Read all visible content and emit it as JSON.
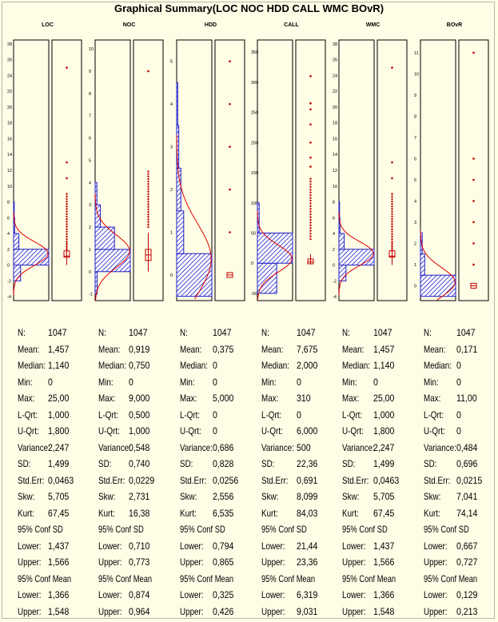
{
  "title": "Graphical Summary(LOC NOC HDD CALL WMC BOvR)",
  "colors": {
    "background": "#fffde6",
    "histogram_fill": "#1e1ec8",
    "normal_curve": "#e00000",
    "dots": "#c00000",
    "box": "#c00000"
  },
  "stat_labels": {
    "n": "N:",
    "mean": "Mean:",
    "median": "Median:",
    "min": "Min:",
    "max": "Max:",
    "lqrt": "L-Qrt:",
    "uqrt": "U-Qrt:",
    "variance": "Variance:",
    "sd": "SD:",
    "stderr": "Std.Err:",
    "skw": "Skw:",
    "kurt": "Kurt:",
    "conf_sd_header": "95% Conf SD",
    "conf_mean_header": "95% Conf Mean",
    "lower": "Lower:",
    "upper": "Upper:"
  },
  "chart_data": [
    {
      "type": "histogram",
      "title": "LOC",
      "yticks": [
        "-4",
        "-2",
        "0",
        "2",
        "4",
        "6",
        "8",
        "10",
        "12",
        "14",
        "16",
        "18",
        "20",
        "22",
        "24",
        "26",
        "28"
      ],
      "ylim": [
        -4.5,
        28.5
      ],
      "bins": [
        {
          "from": -2,
          "to": 0,
          "value": 0.2
        },
        {
          "from": 0,
          "to": 2,
          "value": 1.0
        },
        {
          "from": 2,
          "to": 4,
          "value": 0.15
        },
        {
          "from": 4,
          "to": 6,
          "value": 0.03
        },
        {
          "from": 6,
          "to": 8,
          "value": 0.01
        }
      ],
      "normal": {
        "mean": 1.457,
        "sd": 1.499
      },
      "outliers": [
        25,
        13,
        11
      ],
      "dense_range": [
        2,
        9
      ],
      "box": {
        "q1": 1.0,
        "median": 1.14,
        "q3": 1.8,
        "whisker_low": 0,
        "whisker_high": 3
      },
      "stats": {
        "n": "1047",
        "mean": "1,457",
        "median": "1,140",
        "min": "0",
        "max": "25,00",
        "lqrt": "1,000",
        "uqrt": "1,800",
        "variance": "2,247",
        "sd": "1,499",
        "stderr": "0,0463",
        "skw": "5,705",
        "kurt": "67,45",
        "conf_sd_lower": "1,437",
        "conf_sd_upper": "1,566",
        "conf_mean_lower": "1,366",
        "conf_mean_upper": "1,548"
      }
    },
    {
      "type": "histogram",
      "title": "NOC",
      "yticks": [
        "-1",
        "0",
        "1",
        "2",
        "3",
        "4",
        "5",
        "6",
        "7",
        "8",
        "9",
        "10"
      ],
      "ylim": [
        -1.3,
        10.4
      ],
      "bins": [
        {
          "from": -1,
          "to": 0,
          "value": 0.06
        },
        {
          "from": 0,
          "to": 1,
          "value": 1.0
        },
        {
          "from": 1,
          "to": 2,
          "value": 0.55
        },
        {
          "from": 2,
          "to": 3,
          "value": 0.15
        },
        {
          "from": 3,
          "to": 4,
          "value": 0.05
        }
      ],
      "normal": {
        "mean": 0.919,
        "sd": 0.74
      },
      "outliers": [
        9
      ],
      "dense_range": [
        2,
        4.5
      ],
      "box": {
        "q1": 0.5,
        "median": 0.75,
        "q3": 1.0,
        "whisker_low": 0,
        "whisker_high": 1.75
      },
      "stats": {
        "n": "1047",
        "mean": "0,919",
        "median": "0,750",
        "min": "0",
        "max": "9,000",
        "lqrt": "0,500",
        "uqrt": "1,000",
        "variance": "0,548",
        "sd": "0,740",
        "stderr": "0,0229",
        "skw": "2,731",
        "kurt": "16,38",
        "conf_sd_lower": "0,710",
        "conf_sd_upper": "0,773",
        "conf_mean_lower": "0,874",
        "conf_mean_upper": "0,964"
      }
    },
    {
      "type": "histogram",
      "title": "HDD",
      "yticks": [
        "0",
        "1",
        "2",
        "3",
        "4",
        "5"
      ],
      "ylim": [
        -0.6,
        5.5
      ],
      "bins": [
        {
          "from": -0.5,
          "to": 0.5,
          "value": 1.0
        },
        {
          "from": 0.5,
          "to": 1.5,
          "value": 0.2
        },
        {
          "from": 1.5,
          "to": 2.5,
          "value": 0.12
        },
        {
          "from": 2.5,
          "to": 3.5,
          "value": 0.06
        },
        {
          "from": 3.5,
          "to": 4.5,
          "value": 0.03
        }
      ],
      "normal": {
        "mean": 0.375,
        "sd": 0.828
      },
      "outliers": [
        5,
        4,
        3,
        2,
        1
      ],
      "dense_range": null,
      "box": {
        "q1": 0,
        "median": 0,
        "q3": 0,
        "whisker_low": 0,
        "whisker_high": 0
      },
      "stats": {
        "n": "1047",
        "mean": "0,375",
        "median": "0",
        "min": "0",
        "max": "5,000",
        "lqrt": "0",
        "uqrt": "0",
        "variance": "0,686",
        "sd": "0,828",
        "stderr": "0,0256",
        "skw": "2,556",
        "kurt": "6,535",
        "conf_sd_lower": "0,794",
        "conf_sd_upper": "0,865",
        "conf_mean_lower": "0,325",
        "conf_mean_upper": "0,426"
      }
    },
    {
      "type": "histogram",
      "title": "CALL",
      "yticks": [
        "-50",
        "0",
        "50",
        "100",
        "150",
        "200",
        "250",
        "300",
        "350"
      ],
      "ylim": [
        -62,
        370
      ],
      "bins": [
        {
          "from": -50,
          "to": 0,
          "value": 0.55
        },
        {
          "from": 0,
          "to": 50,
          "value": 1.0
        },
        {
          "from": 50,
          "to": 100,
          "value": 0.05
        }
      ],
      "normal": {
        "mean": 7.675,
        "sd": 22.36
      },
      "outliers": [
        310,
        265,
        255,
        230,
        200,
        175,
        160
      ],
      "dense_range": [
        40,
        140
      ],
      "box": {
        "q1": 0,
        "median": 2,
        "q3": 6,
        "whisker_low": 0,
        "whisker_high": 15
      },
      "stats": {
        "n": "1047",
        "mean": "7,675",
        "median": "2,000",
        "min": "0",
        "max": "310",
        "lqrt": "0",
        "uqrt": "6,000",
        "variance": "500",
        "sd": "22,36",
        "stderr": "0,691",
        "skw": "8,099",
        "kurt": "84,03",
        "conf_sd_lower": "21,44",
        "conf_sd_upper": "23,36",
        "conf_mean_lower": "6,319",
        "conf_mean_upper": "9,031"
      }
    },
    {
      "type": "histogram",
      "title": "WMC",
      "yticks": [
        "-4",
        "-2",
        "0",
        "2",
        "4",
        "6",
        "8",
        "10",
        "12",
        "14",
        "16",
        "18",
        "20",
        "22",
        "24",
        "26",
        "28"
      ],
      "ylim": [
        -4.5,
        28.5
      ],
      "bins": [
        {
          "from": -2,
          "to": 0,
          "value": 0.2
        },
        {
          "from": 0,
          "to": 2,
          "value": 1.0
        },
        {
          "from": 2,
          "to": 4,
          "value": 0.15
        },
        {
          "from": 4,
          "to": 6,
          "value": 0.03
        },
        {
          "from": 6,
          "to": 8,
          "value": 0.01
        }
      ],
      "normal": {
        "mean": 1.457,
        "sd": 1.499
      },
      "outliers": [
        25,
        13,
        11
      ],
      "dense_range": [
        2,
        9
      ],
      "box": {
        "q1": 1.0,
        "median": 1.14,
        "q3": 1.8,
        "whisker_low": 0,
        "whisker_high": 3
      },
      "stats": {
        "n": "1047",
        "mean": "1,457",
        "median": "1,140",
        "min": "0",
        "max": "25,00",
        "lqrt": "1,000",
        "uqrt": "1,800",
        "variance": "2,247",
        "sd": "1,499",
        "stderr": "0,0463",
        "skw": "5,705",
        "kurt": "67,45",
        "conf_sd_lower": "1,437",
        "conf_sd_upper": "1,566",
        "conf_mean_lower": "1,366",
        "conf_mean_upper": "1,548"
      }
    },
    {
      "type": "histogram",
      "title": "BOvR",
      "yticks": [
        "0",
        "1",
        "2",
        "3",
        "4",
        "5",
        "6",
        "7",
        "8",
        "9",
        "10",
        "11"
      ],
      "ylim": [
        -0.7,
        11.6
      ],
      "bins": [
        {
          "from": -0.5,
          "to": 0.5,
          "value": 1.0
        },
        {
          "from": 0.5,
          "to": 1.5,
          "value": 0.12
        },
        {
          "from": 1.5,
          "to": 2.5,
          "value": 0.05
        }
      ],
      "normal": {
        "mean": 0.171,
        "sd": 0.696
      },
      "outliers": [
        11,
        6,
        5,
        4,
        3,
        2,
        1
      ],
      "dense_range": null,
      "box": {
        "q1": 0,
        "median": 0,
        "q3": 0,
        "whisker_low": 0,
        "whisker_high": 0
      },
      "stats": {
        "n": "1047",
        "mean": "0,171",
        "median": "0",
        "min": "0",
        "max": "11,00",
        "lqrt": "0",
        "uqrt": "0",
        "variance": "0,484",
        "sd": "0,696",
        "stderr": "0,0215",
        "skw": "7,041",
        "kurt": "74,14",
        "conf_sd_lower": "0,667",
        "conf_sd_upper": "0,727",
        "conf_mean_lower": "0,129",
        "conf_mean_upper": "0,213"
      }
    }
  ]
}
